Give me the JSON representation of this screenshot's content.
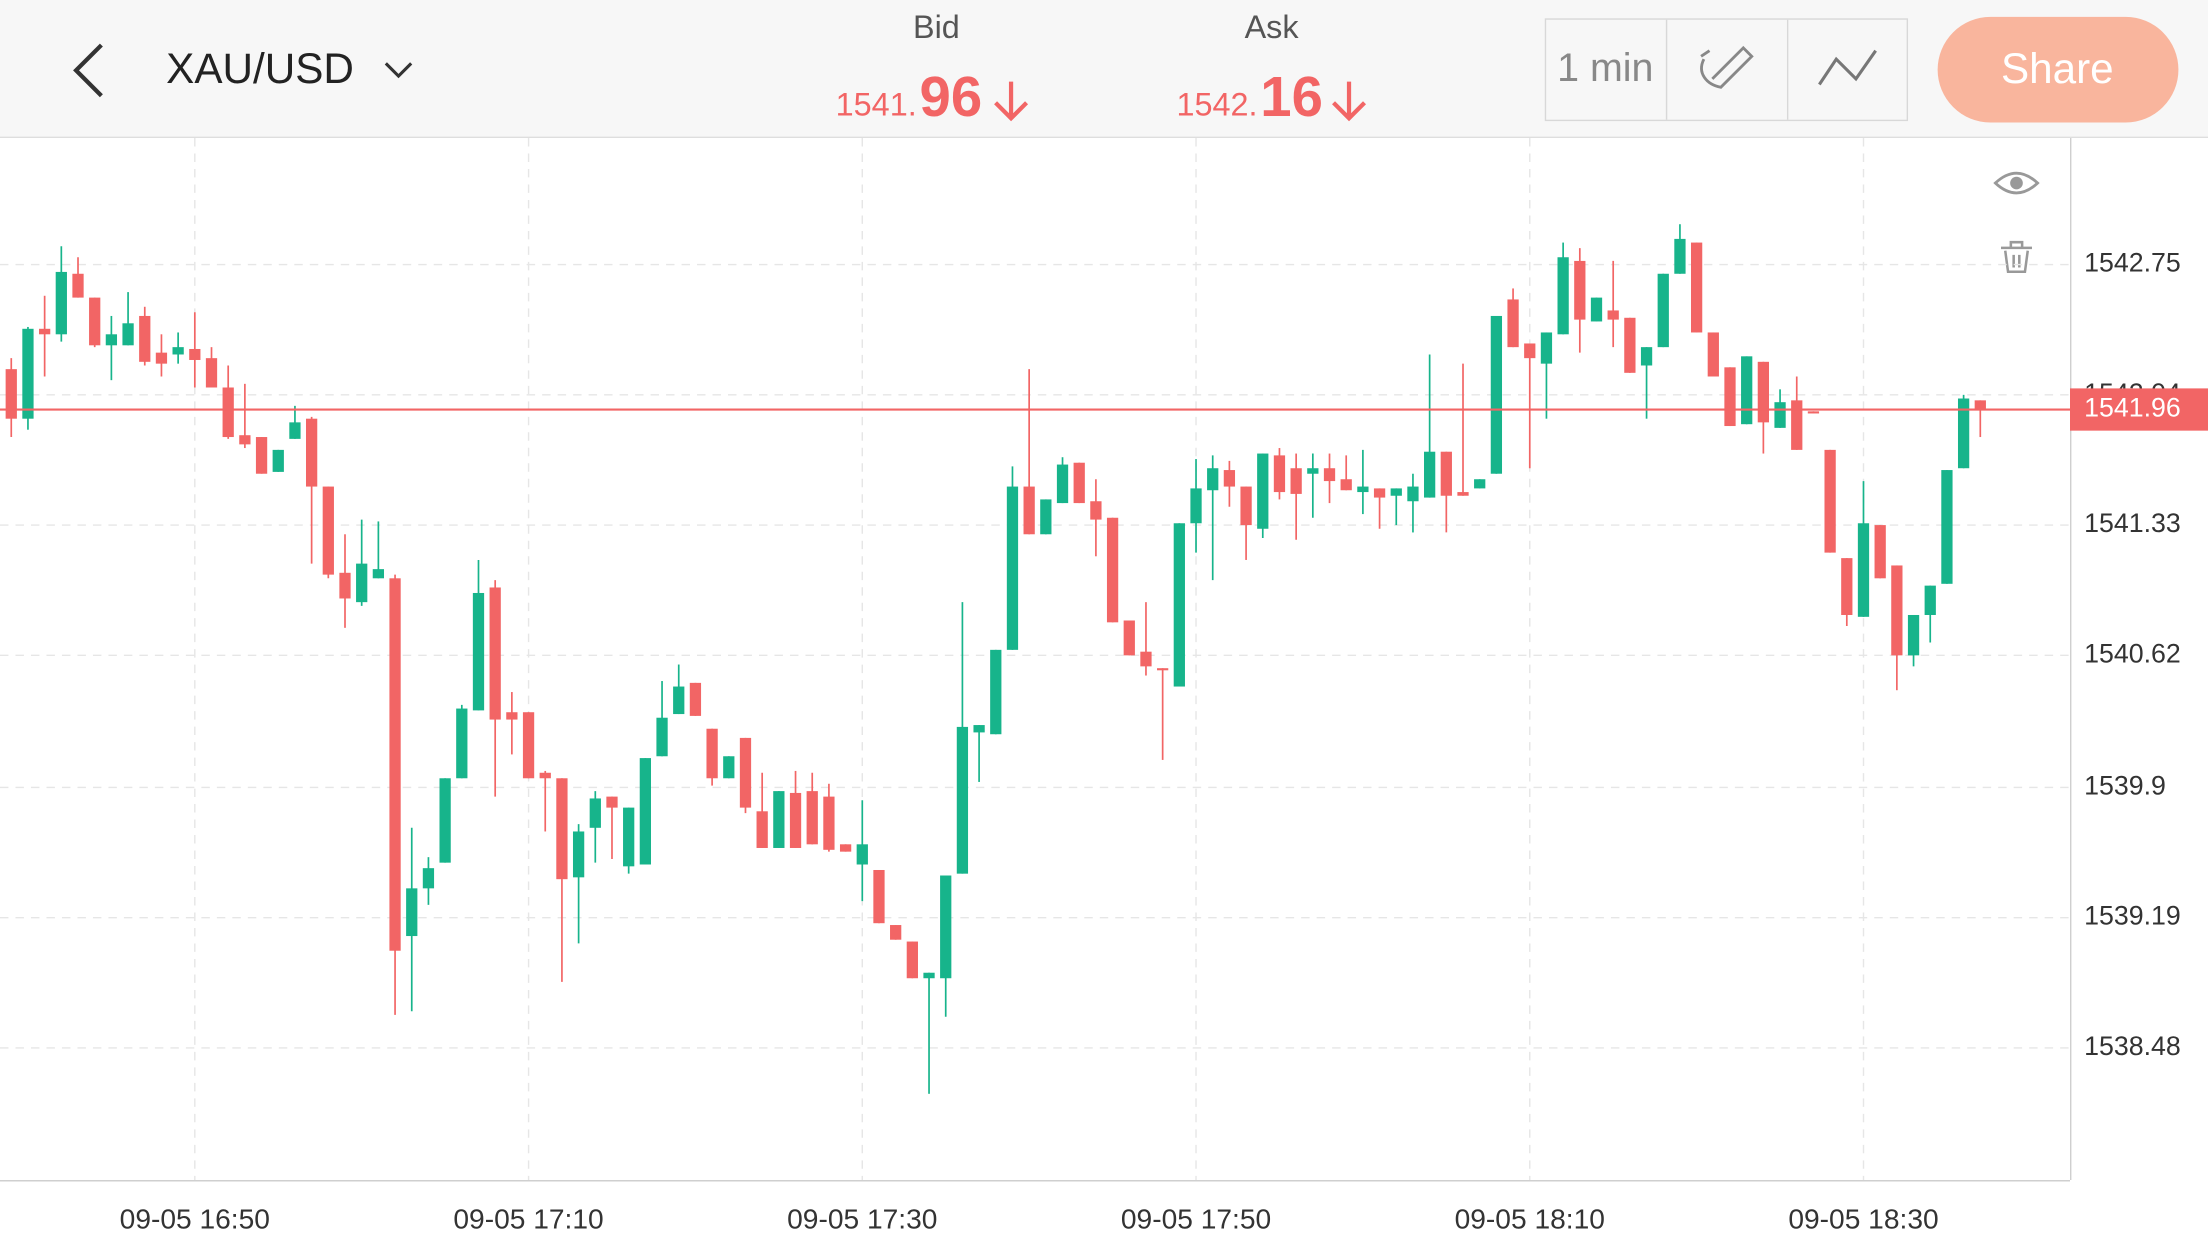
{
  "header": {
    "symbol": "XAU/USD",
    "bid_label": "Bid",
    "bid_price_small": "1541.",
    "bid_price_large": "96",
    "ask_label": "Ask",
    "ask_price_small": "1542.",
    "ask_price_large": "16",
    "interval": "1 min",
    "share": "Share"
  },
  "chart_data": {
    "type": "candlestick",
    "up_color": "#17b48b",
    "down_color": "#f26565",
    "grid": true,
    "categories": [
      null,
      null,
      null,
      null,
      null,
      null,
      null,
      null,
      null,
      null,
      null,
      "09-05 16:50",
      null,
      null,
      null,
      null,
      null,
      null,
      null,
      null,
      null,
      null,
      null,
      null,
      null,
      null,
      null,
      null,
      null,
      null,
      null,
      "09-05 17:10",
      null,
      null,
      null,
      null,
      null,
      null,
      null,
      null,
      null,
      null,
      null,
      null,
      null,
      null,
      null,
      null,
      null,
      null,
      null,
      "09-05 17:30",
      null,
      null,
      null,
      null,
      null,
      null,
      null,
      null,
      null,
      null,
      null,
      null,
      null,
      null,
      null,
      null,
      null,
      null,
      null,
      "09-05 17:50",
      null,
      null,
      null,
      null,
      null,
      null,
      null,
      null,
      null,
      null,
      null,
      null,
      null,
      null,
      null,
      null,
      null,
      null,
      null,
      "09-05 18:10",
      null,
      null,
      null,
      null,
      null,
      null,
      null,
      null,
      null,
      null,
      null,
      null,
      null,
      null,
      null,
      null,
      null,
      null,
      null,
      "09-05 18:30",
      null,
      null,
      null,
      null,
      null,
      null,
      null
    ],
    "candles": [
      [
        1542.18,
        1542.24,
        1541.81,
        1541.91
      ],
      [
        1541.91,
        1542.41,
        1541.85,
        1542.4
      ],
      [
        1542.4,
        1542.58,
        1542.14,
        1542.37
      ],
      [
        1542.37,
        1542.85,
        1542.33,
        1542.71
      ],
      [
        1542.7,
        1542.79,
        1542.57,
        1542.57
      ],
      [
        1542.57,
        1542.57,
        1542.3,
        1542.31
      ],
      [
        1542.31,
        1542.47,
        1542.12,
        1542.37
      ],
      [
        1542.31,
        1542.6,
        1542.31,
        1542.43
      ],
      [
        1542.47,
        1542.52,
        1542.2,
        1542.22
      ],
      [
        1542.27,
        1542.37,
        1542.14,
        1542.21
      ],
      [
        1542.26,
        1542.38,
        1542.21,
        1542.3
      ],
      [
        1542.29,
        1542.49,
        1542.08,
        1542.23
      ],
      [
        1542.24,
        1542.3,
        1542.08,
        1542.08
      ],
      [
        1542.08,
        1542.2,
        1541.8,
        1541.81
      ],
      [
        1541.82,
        1542.1,
        1541.75,
        1541.77
      ],
      [
        1541.81,
        1541.81,
        1541.61,
        1541.61
      ],
      [
        1541.62,
        1541.74,
        1541.62,
        1541.74
      ],
      [
        1541.8,
        1541.98,
        1541.8,
        1541.89
      ],
      [
        1541.91,
        1541.92,
        1541.12,
        1541.54
      ],
      [
        1541.54,
        1541.54,
        1541.04,
        1541.06
      ],
      [
        1541.07,
        1541.28,
        1540.77,
        1540.93
      ],
      [
        1540.91,
        1541.36,
        1540.89,
        1541.12
      ],
      [
        1541.04,
        1541.35,
        1541.04,
        1541.09
      ],
      [
        1541.04,
        1541.06,
        1538.66,
        1539.01
      ],
      [
        1539.09,
        1539.68,
        1538.68,
        1539.35
      ],
      [
        1539.35,
        1539.52,
        1539.26,
        1539.46
      ],
      [
        1539.49,
        1539.95,
        1539.49,
        1539.95
      ],
      [
        1539.95,
        1540.35,
        1539.95,
        1540.33
      ],
      [
        1540.32,
        1541.14,
        1540.32,
        1540.96
      ],
      [
        1540.99,
        1541.03,
        1539.85,
        1540.27
      ],
      [
        1540.31,
        1540.42,
        1540.08,
        1540.27
      ],
      [
        1540.31,
        1540.31,
        1539.95,
        1539.95
      ],
      [
        1539.98,
        1539.99,
        1539.66,
        1539.95
      ],
      [
        1539.95,
        1539.95,
        1538.84,
        1539.4
      ],
      [
        1539.41,
        1539.7,
        1539.05,
        1539.66
      ],
      [
        1539.68,
        1539.88,
        1539.49,
        1539.84
      ],
      [
        1539.85,
        1539.85,
        1539.51,
        1539.79
      ],
      [
        1539.47,
        1539.79,
        1539.43,
        1539.79
      ],
      [
        1539.48,
        1540.06,
        1539.48,
        1540.06
      ],
      [
        1540.07,
        1540.48,
        1540.07,
        1540.28
      ],
      [
        1540.3,
        1540.57,
        1540.3,
        1540.45
      ],
      [
        1540.47,
        1540.47,
        1540.29,
        1540.29
      ],
      [
        1540.22,
        1540.22,
        1539.91,
        1539.95
      ],
      [
        1539.95,
        1540.07,
        1539.95,
        1540.07
      ],
      [
        1540.17,
        1540.17,
        1539.76,
        1539.79
      ],
      [
        1539.77,
        1539.98,
        1539.57,
        1539.57
      ],
      [
        1539.57,
        1539.88,
        1539.57,
        1539.88
      ],
      [
        1539.87,
        1539.99,
        1539.57,
        1539.57
      ],
      [
        1539.88,
        1539.98,
        1539.59,
        1539.59
      ],
      [
        1539.85,
        1539.92,
        1539.55,
        1539.56
      ],
      [
        1539.59,
        1539.59,
        1539.55,
        1539.55
      ],
      [
        1539.48,
        1539.83,
        1539.28,
        1539.59
      ],
      [
        1539.45,
        1539.45,
        1539.16,
        1539.16
      ],
      [
        1539.15,
        1539.15,
        1539.07,
        1539.07
      ],
      [
        1539.06,
        1539.06,
        1538.86,
        1538.86
      ],
      [
        1538.86,
        1538.89,
        1538.23,
        1538.89
      ],
      [
        1538.86,
        1539.42,
        1538.65,
        1539.42
      ],
      [
        1539.43,
        1540.91,
        1539.43,
        1540.23
      ],
      [
        1540.2,
        1540.24,
        1539.93,
        1540.24
      ],
      [
        1540.19,
        1540.65,
        1540.19,
        1540.65
      ],
      [
        1540.65,
        1541.65,
        1540.65,
        1541.54
      ],
      [
        1541.54,
        1542.18,
        1541.28,
        1541.28
      ],
      [
        1541.28,
        1541.47,
        1541.28,
        1541.47
      ],
      [
        1541.45,
        1541.7,
        1541.45,
        1541.66
      ],
      [
        1541.67,
        1541.67,
        1541.45,
        1541.45
      ],
      [
        1541.46,
        1541.58,
        1541.16,
        1541.36
      ],
      [
        1541.37,
        1541.37,
        1540.8,
        1540.8
      ],
      [
        1540.81,
        1540.81,
        1540.62,
        1540.62
      ],
      [
        1540.64,
        1540.91,
        1540.51,
        1540.56
      ],
      [
        1540.55,
        1540.55,
        1540.05,
        1540.54
      ],
      [
        1540.45,
        1541.34,
        1540.45,
        1541.34
      ],
      [
        1541.34,
        1541.69,
        1541.18,
        1541.53
      ],
      [
        1541.52,
        1541.71,
        1541.03,
        1541.64
      ],
      [
        1541.63,
        1541.68,
        1541.43,
        1541.54
      ],
      [
        1541.54,
        1541.54,
        1541.14,
        1541.33
      ],
      [
        1541.31,
        1541.72,
        1541.26,
        1541.72
      ],
      [
        1541.71,
        1541.75,
        1541.47,
        1541.51
      ],
      [
        1541.64,
        1541.72,
        1541.25,
        1541.5
      ],
      [
        1541.61,
        1541.72,
        1541.37,
        1541.64
      ],
      [
        1541.64,
        1541.72,
        1541.45,
        1541.57
      ],
      [
        1541.58,
        1541.71,
        1541.52,
        1541.52
      ],
      [
        1541.51,
        1541.74,
        1541.39,
        1541.54
      ],
      [
        1541.53,
        1541.53,
        1541.31,
        1541.48
      ],
      [
        1541.49,
        1541.53,
        1541.33,
        1541.53
      ],
      [
        1541.46,
        1541.61,
        1541.29,
        1541.54
      ],
      [
        1541.48,
        1542.26,
        1541.48,
        1541.73
      ],
      [
        1541.73,
        1541.73,
        1541.29,
        1541.49
      ],
      [
        1541.51,
        1542.21,
        1541.49,
        1541.49
      ],
      [
        1541.53,
        1541.58,
        1541.53,
        1541.58
      ],
      [
        1541.61,
        1542.47,
        1541.61,
        1542.47
      ],
      [
        1542.56,
        1542.62,
        1542.3,
        1542.3
      ],
      [
        1542.32,
        1542.32,
        1541.64,
        1542.24
      ],
      [
        1542.21,
        1542.38,
        1541.91,
        1542.38
      ],
      [
        1542.37,
        1542.87,
        1542.37,
        1542.79
      ],
      [
        1542.77,
        1542.84,
        1542.27,
        1542.45
      ],
      [
        1542.44,
        1542.57,
        1542.44,
        1542.57
      ],
      [
        1542.5,
        1542.77,
        1542.3,
        1542.45
      ],
      [
        1542.46,
        1542.46,
        1542.16,
        1542.16
      ],
      [
        1542.2,
        1542.3,
        1541.91,
        1542.3
      ],
      [
        1542.3,
        1542.7,
        1542.3,
        1542.7
      ],
      [
        1542.7,
        1542.97,
        1542.7,
        1542.89
      ],
      [
        1542.87,
        1542.87,
        1542.38,
        1542.38
      ],
      [
        1542.38,
        1542.38,
        1542.14,
        1542.14
      ],
      [
        1542.19,
        1542.19,
        1541.87,
        1541.87
      ],
      [
        1541.88,
        1542.25,
        1541.88,
        1542.25
      ],
      [
        1542.22,
        1542.22,
        1541.72,
        1541.89
      ],
      [
        1541.86,
        1542.07,
        1541.86,
        1542.0
      ],
      [
        1542.01,
        1542.14,
        1541.74,
        1541.74
      ],
      [
        1541.95,
        1541.95,
        1541.94,
        1541.94
      ],
      [
        1541.74,
        1541.74,
        1541.18,
        1541.18
      ],
      [
        1541.15,
        1541.15,
        1540.78,
        1540.84
      ],
      [
        1540.83,
        1541.57,
        1540.83,
        1541.34
      ],
      [
        1541.33,
        1541.33,
        1541.04,
        1541.04
      ],
      [
        1541.11,
        1541.11,
        1540.43,
        1540.62
      ],
      [
        1540.62,
        1540.84,
        1540.56,
        1540.84
      ],
      [
        1540.84,
        1541.0,
        1540.69,
        1541.0
      ],
      [
        1541.01,
        1541.63,
        1541.01,
        1541.63
      ],
      [
        1541.64,
        1542.04,
        1541.64,
        1542.02
      ],
      [
        1542.01,
        1542.01,
        1541.81,
        1541.96
      ]
    ],
    "ylim": [
      1537.76,
      1543.44
    ],
    "yticks": [
      1542.75,
      1542.04,
      1541.33,
      1540.62,
      1539.9,
      1539.19,
      1538.48
    ],
    "current_price": 1541.96,
    "current_price_label": "1541.96",
    "current_color": "#f26565"
  }
}
